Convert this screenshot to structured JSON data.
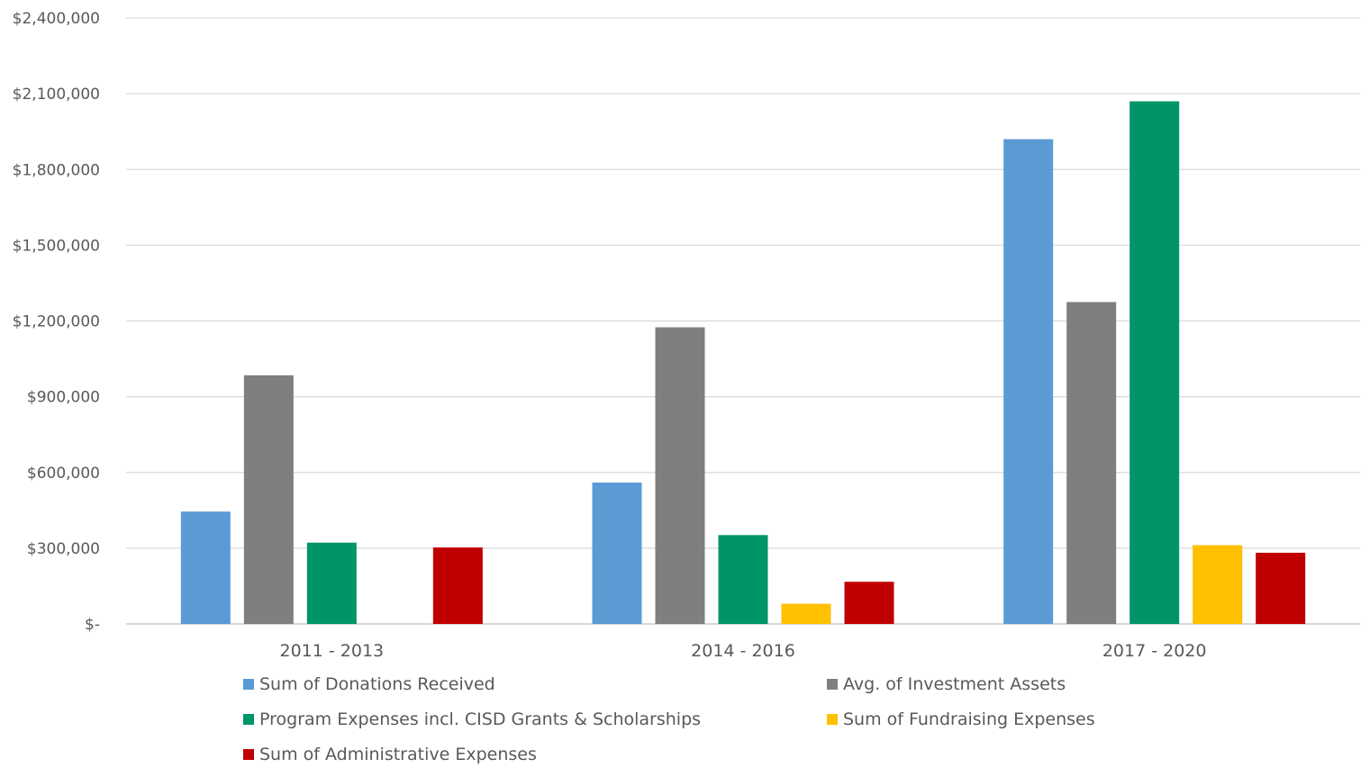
{
  "chart_data": {
    "type": "bar",
    "title": "",
    "xlabel": "",
    "ylabel": "",
    "categories": [
      "2011 - 2013",
      "2014 - 2016",
      "2017 - 2020"
    ],
    "ylim": [
      0,
      2400000
    ],
    "yticks": [
      0,
      300000,
      600000,
      900000,
      1200000,
      1500000,
      1800000,
      2100000,
      2400000
    ],
    "ytick_labels": [
      "$-",
      "$300,000",
      "$600,000",
      "$900,000",
      "$1,200,000",
      "$1,500,000",
      "$1,800,000",
      "$2,100,000",
      "$2,400,000"
    ],
    "grid": true,
    "legend_position": "bottom",
    "series": [
      {
        "name": "Sum of Donations Received",
        "color": "#5B9BD5",
        "values": [
          445000,
          560000,
          1920000
        ]
      },
      {
        "name": "Avg. of Investment Assets",
        "color": "#7F7F7F",
        "values": [
          985000,
          1175000,
          1275000
        ]
      },
      {
        "name": "Program Expenses incl. CISD Grants & Scholarships",
        "color": "#009469",
        "values": [
          322000,
          352000,
          2070000
        ]
      },
      {
        "name": "Sum of Fundraising Expenses",
        "color": "#FFC000",
        "values": [
          0,
          80000,
          312000
        ]
      },
      {
        "name": "Sum of Administrative Expenses",
        "color": "#C00000",
        "values": [
          303000,
          167000,
          282000
        ]
      }
    ]
  }
}
